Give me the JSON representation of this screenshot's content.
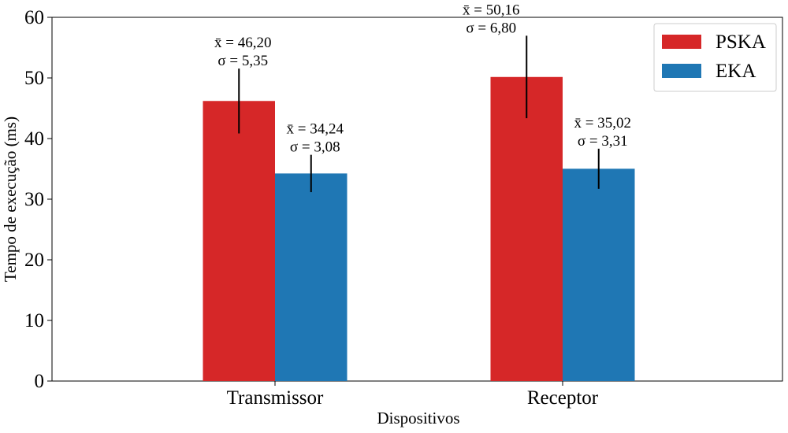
{
  "chart_data": {
    "type": "bar",
    "title": "",
    "xlabel": "Dispositivos",
    "ylabel": "Tempo de execução (ms)",
    "ylim": [
      0,
      60
    ],
    "yticks": [
      "0",
      "10",
      "20",
      "30",
      "40",
      "50",
      "60"
    ],
    "categories": [
      "Transmissor",
      "Receptor"
    ],
    "grid": false,
    "legend_position": "top-right",
    "series": [
      {
        "name": "PSKA",
        "color": "#d62728",
        "values": [
          46.2,
          50.16
        ],
        "errors": [
          5.35,
          6.8
        ],
        "mean_labels": [
          "46,20",
          "50,16"
        ],
        "sd_labels": [
          "5,35",
          "6,80"
        ]
      },
      {
        "name": "EKA",
        "color": "#1f77b4",
        "values": [
          34.24,
          35.02
        ],
        "errors": [
          3.08,
          3.31
        ],
        "mean_labels": [
          "34,24",
          "35,02"
        ],
        "sd_labels": [
          "3,08",
          "3,31"
        ]
      }
    ],
    "mean_prefix": "x̄ =",
    "sd_prefix": "σ ="
  }
}
